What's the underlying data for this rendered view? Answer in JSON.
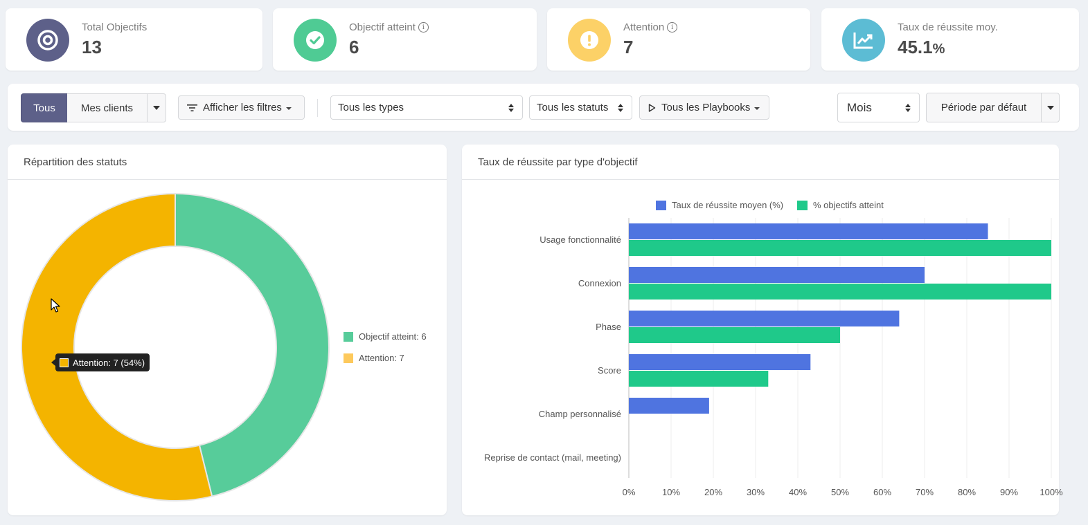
{
  "stats": [
    {
      "label": "Total Objectifs",
      "value": "13",
      "suffix": "",
      "info": false,
      "icon": "target-icon",
      "color": "#5d6089"
    },
    {
      "label": "Objectif atteint",
      "value": "6",
      "suffix": "",
      "info": true,
      "icon": "check-circle-icon",
      "color": "#4fcb94"
    },
    {
      "label": "Attention",
      "value": "7",
      "suffix": "",
      "info": true,
      "icon": "exclamation-icon",
      "color": "#fcd167"
    },
    {
      "label": "Taux de réussite moy.",
      "value": "45.1",
      "suffix": "%",
      "info": false,
      "icon": "chart-line-icon",
      "color": "#5cbcd4"
    }
  ],
  "filters": {
    "tous": "Tous",
    "mes_clients": "Mes clients",
    "afficher_filtres": "Afficher les filtres",
    "types": "Tous les types",
    "statuts": "Tous les statuts",
    "playbooks": "Tous les Playbooks",
    "periode_unit": "Mois",
    "periode": "Période par défaut"
  },
  "donut": {
    "title": "Répartition des statuts",
    "tooltip": "Attention: 7 (54%)",
    "legend": [
      "Objectif atteint: 6",
      "Attention: 7"
    ]
  },
  "bars": {
    "title": "Taux de réussite par type d'objectif",
    "legend": [
      "Taux de réussite moyen (%)",
      "% objectifs atteint"
    ]
  },
  "chart_data": [
    {
      "type": "pie",
      "title": "Répartition des statuts",
      "categories": [
        "Objectif atteint",
        "Attention"
      ],
      "values": [
        6,
        7
      ],
      "colors": [
        "#57cc9a",
        "#f4b400"
      ],
      "legend": "right"
    },
    {
      "type": "bar",
      "orientation": "horizontal",
      "title": "Taux de réussite par type d'objectif",
      "categories": [
        "Usage fonctionnalité",
        "Connexion",
        "Phase",
        "Score",
        "Champ personnalisé",
        "Reprise de contact (mail, meeting)"
      ],
      "series": [
        {
          "name": "Taux de réussite moyen (%)",
          "values": [
            85,
            70,
            64,
            43,
            19,
            0
          ],
          "color": "#4f74e0"
        },
        {
          "name": "% objectifs atteint",
          "values": [
            100,
            100,
            50,
            33,
            0,
            0
          ],
          "color": "#1fc98a"
        }
      ],
      "xlim": [
        0,
        100
      ],
      "xticks": [
        "0%",
        "10%",
        "20%",
        "30%",
        "40%",
        "50%",
        "60%",
        "70%",
        "80%",
        "90%",
        "100%"
      ],
      "grid": true,
      "legend": "top"
    }
  ]
}
